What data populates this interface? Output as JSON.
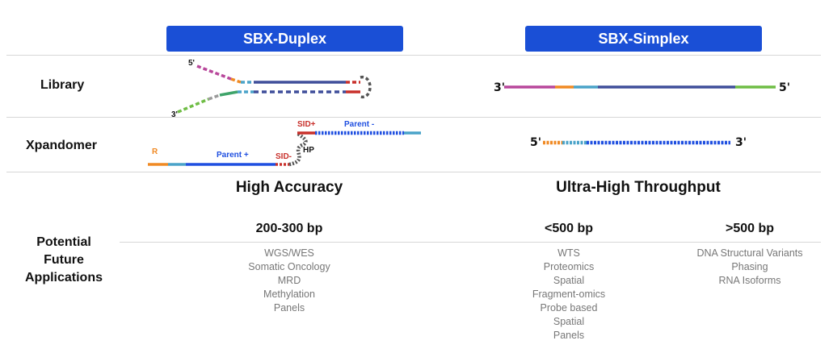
{
  "headers": {
    "duplex": "SBX-Duplex",
    "simplex": "SBX-Simplex"
  },
  "rows": {
    "library": "Library",
    "xpandomer": "Xpandomer",
    "applications_line1": "Potential",
    "applications_line2": "Future",
    "applications_line3": "Applications"
  },
  "duplex_library": {
    "five_prime": "5'",
    "three_prime": "3'"
  },
  "duplex_xpandomer": {
    "r_label": "R",
    "parent_plus": "Parent +",
    "parent_minus": "Parent -",
    "sid_plus": "SID+",
    "sid_minus": "SID-",
    "hp": "HP"
  },
  "simplex_library": {
    "left_end": "3'",
    "right_end": "5'"
  },
  "simplex_xpandomer": {
    "left_end": "5'",
    "right_end": "3'"
  },
  "columns": {
    "duplex": {
      "heading": "High Accuracy",
      "bp": "200-300 bp",
      "apps": [
        "WGS/WES",
        "Somatic Oncology",
        "MRD",
        "Methylation",
        "Panels"
      ]
    },
    "simplex": {
      "heading": "Ultra-High Throughput",
      "short": {
        "bp": "<500 bp",
        "apps": [
          "WTS",
          "Proteomics",
          "Spatial",
          "Fragment-omics",
          "Probe based",
          "Spatial",
          "Panels"
        ]
      },
      "long": {
        "bp": ">500 bp",
        "apps": [
          "DNA Structural Variants",
          "Phasing",
          "RNA Isoforms"
        ]
      }
    }
  },
  "colors": {
    "header_blue": "#1a4fd6",
    "strand_navy": "#3f4e9a",
    "bead_blue": "#1f4fe0",
    "magenta": "#b8479b",
    "green": "#6fbd45",
    "orange": "#f08a24",
    "teal": "#4aa3c9",
    "red": "#c8302b",
    "gray": "#555555"
  }
}
